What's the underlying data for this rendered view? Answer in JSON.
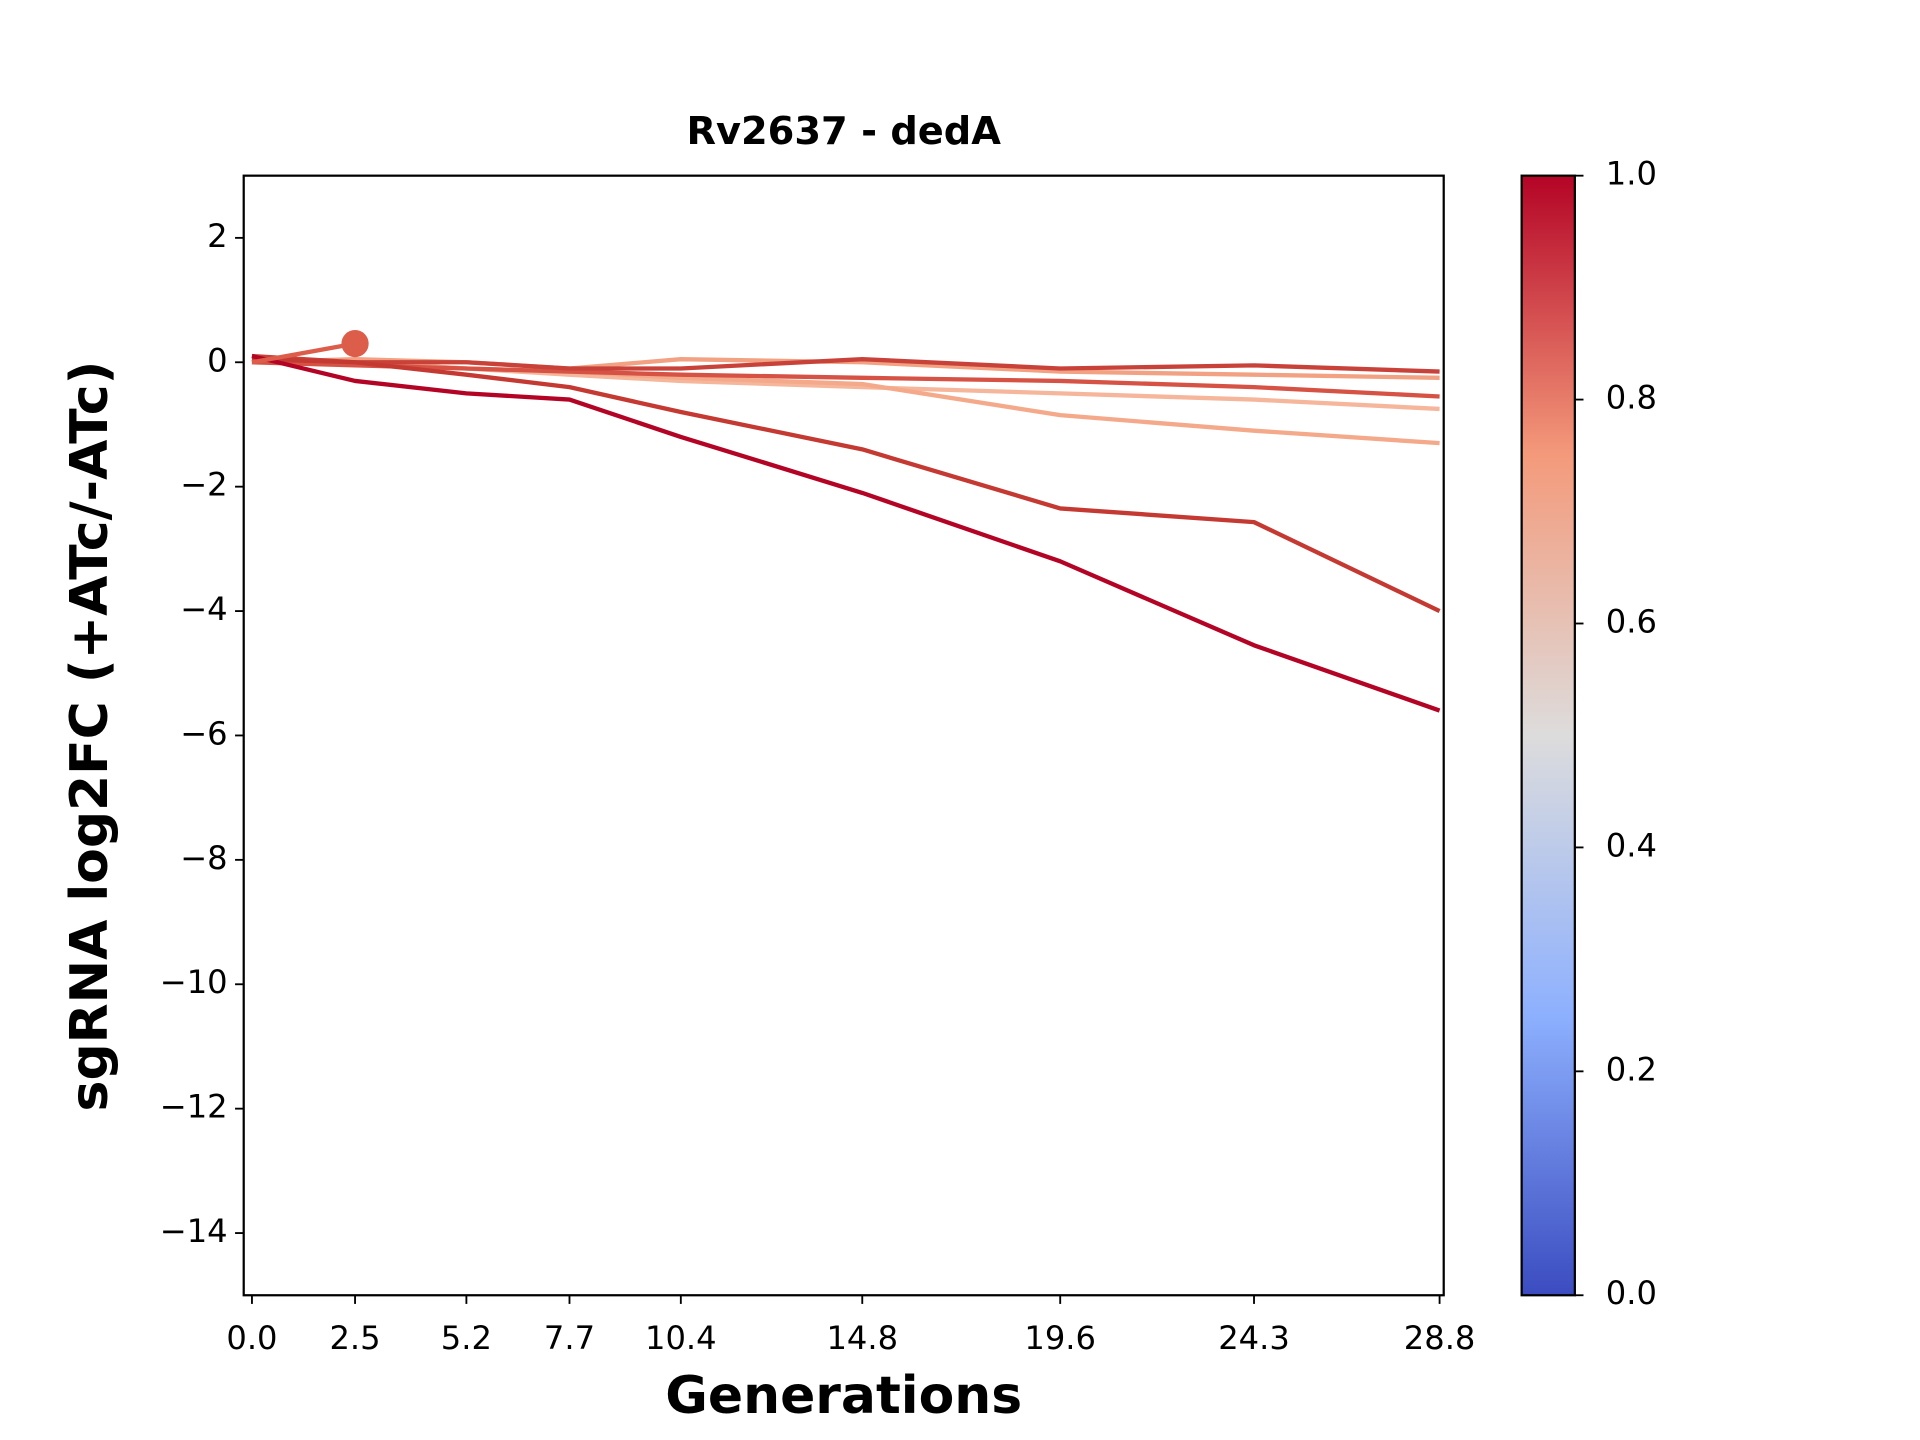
{
  "chart_data": {
    "type": "line",
    "title": "Rv2637 - dedA",
    "x_label": "Generations",
    "y_label": "sgRNA log2FC (+ATc/-ATc)",
    "x": [
      0,
      2.5,
      5.2,
      7.7,
      10.4,
      14.8,
      19.6,
      24.3,
      28.8
    ],
    "series": [
      {
        "color": "#f2a283",
        "values": [
          0.0,
          0.05,
          0.0,
          -0.1,
          0.05,
          0.0,
          -0.15,
          -0.2,
          -0.25
        ]
      },
      {
        "color": "#f6b69b",
        "values": [
          0.0,
          0.0,
          -0.1,
          -0.2,
          -0.3,
          -0.4,
          -0.5,
          -0.6,
          -0.75
        ]
      },
      {
        "color": "#f4a98a",
        "values": [
          0.0,
          0.0,
          -0.1,
          -0.15,
          -0.25,
          -0.35,
          -0.85,
          -1.1,
          -1.3
        ]
      },
      {
        "color": "#d65244",
        "values": [
          0.0,
          -0.05,
          -0.1,
          -0.15,
          -0.2,
          -0.25,
          -0.3,
          -0.4,
          -0.55
        ]
      },
      {
        "color": "#c9423a",
        "values": [
          0.1,
          0.0,
          0.0,
          -0.1,
          -0.1,
          0.05,
          -0.1,
          -0.05,
          -0.15
        ]
      },
      {
        "color": "#c43a32",
        "values": [
          0.05,
          0.0,
          -0.2,
          -0.4,
          -0.8,
          -1.4,
          -2.35,
          -2.57,
          -4.0
        ]
      },
      {
        "color": "#b40426",
        "values": [
          0.1,
          -0.3,
          -0.5,
          -0.6,
          -1.2,
          -2.1,
          -3.2,
          -4.55,
          -5.6
        ]
      },
      {
        "color": "#dc5d4a",
        "values": [
          0.0,
          0.3,
          null,
          null,
          null,
          null,
          null,
          null,
          null
        ]
      }
    ],
    "points": [
      {
        "x": 2.5,
        "y": 0.3,
        "color": "#dc5d4a"
      }
    ],
    "xlim": [
      -0.2,
      28.9
    ],
    "ylim": [
      -15,
      3
    ],
    "xticks": [
      {
        "value": 0,
        "label": "0.0"
      },
      2.5,
      5.2,
      7.7,
      10.4,
      14.8,
      19.6,
      24.3,
      28.8
    ],
    "yticks": [
      {
        "value": -14,
        "label": "−14"
      },
      {
        "value": -12,
        "label": "−12"
      },
      {
        "value": -10,
        "label": "−10"
      },
      {
        "value": -8,
        "label": "−8"
      },
      {
        "value": -6,
        "label": "−6"
      },
      {
        "value": -4,
        "label": "−4"
      },
      {
        "value": -2,
        "label": "−2"
      },
      0,
      2
    ],
    "colorbar": {
      "lim": [
        0,
        1
      ],
      "colors": [
        "#3b4cc0",
        "#8db0fe",
        "#dddcdc",
        "#f49a7b",
        "#b40426"
      ],
      "ticks": [
        {
          "value": 0,
          "label": "0.0"
        },
        {
          "value": 0.2,
          "label": "0.2"
        },
        {
          "value": 0.4,
          "label": "0.4"
        },
        {
          "value": 0.6,
          "label": "0.6"
        },
        {
          "value": 0.8,
          "label": "0.8"
        },
        {
          "value": 1,
          "label": "1.0"
        }
      ]
    }
  }
}
